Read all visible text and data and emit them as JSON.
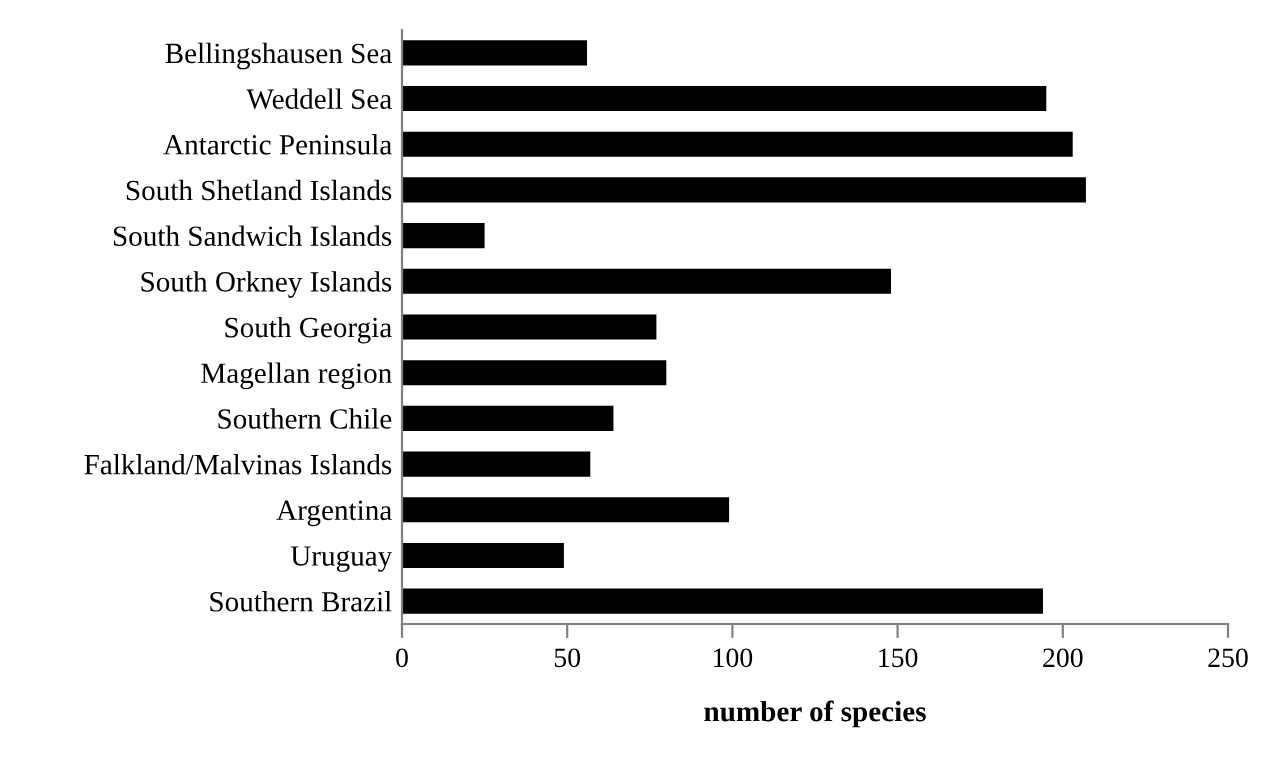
{
  "chart_data": {
    "type": "bar",
    "orientation": "horizontal",
    "xlabel": "number of species",
    "categories": [
      "Bellingshausen Sea",
      "Weddell Sea",
      "Antarctic Peninsula",
      "South Shetland Islands",
      "South Sandwich Islands",
      "South Orkney Islands",
      "South Georgia",
      "Magellan region",
      "Southern Chile",
      "Falkland/Malvinas Islands",
      "Argentina",
      "Uruguay",
      "Southern Brazil"
    ],
    "values": [
      56,
      195,
      203,
      207,
      25,
      148,
      77,
      80,
      64,
      57,
      99,
      49,
      194
    ],
    "color": "#000000",
    "xlim": [
      0,
      250
    ],
    "xticks": [
      0,
      50,
      100,
      150,
      200,
      250
    ],
    "grid": false,
    "legend": false
  }
}
